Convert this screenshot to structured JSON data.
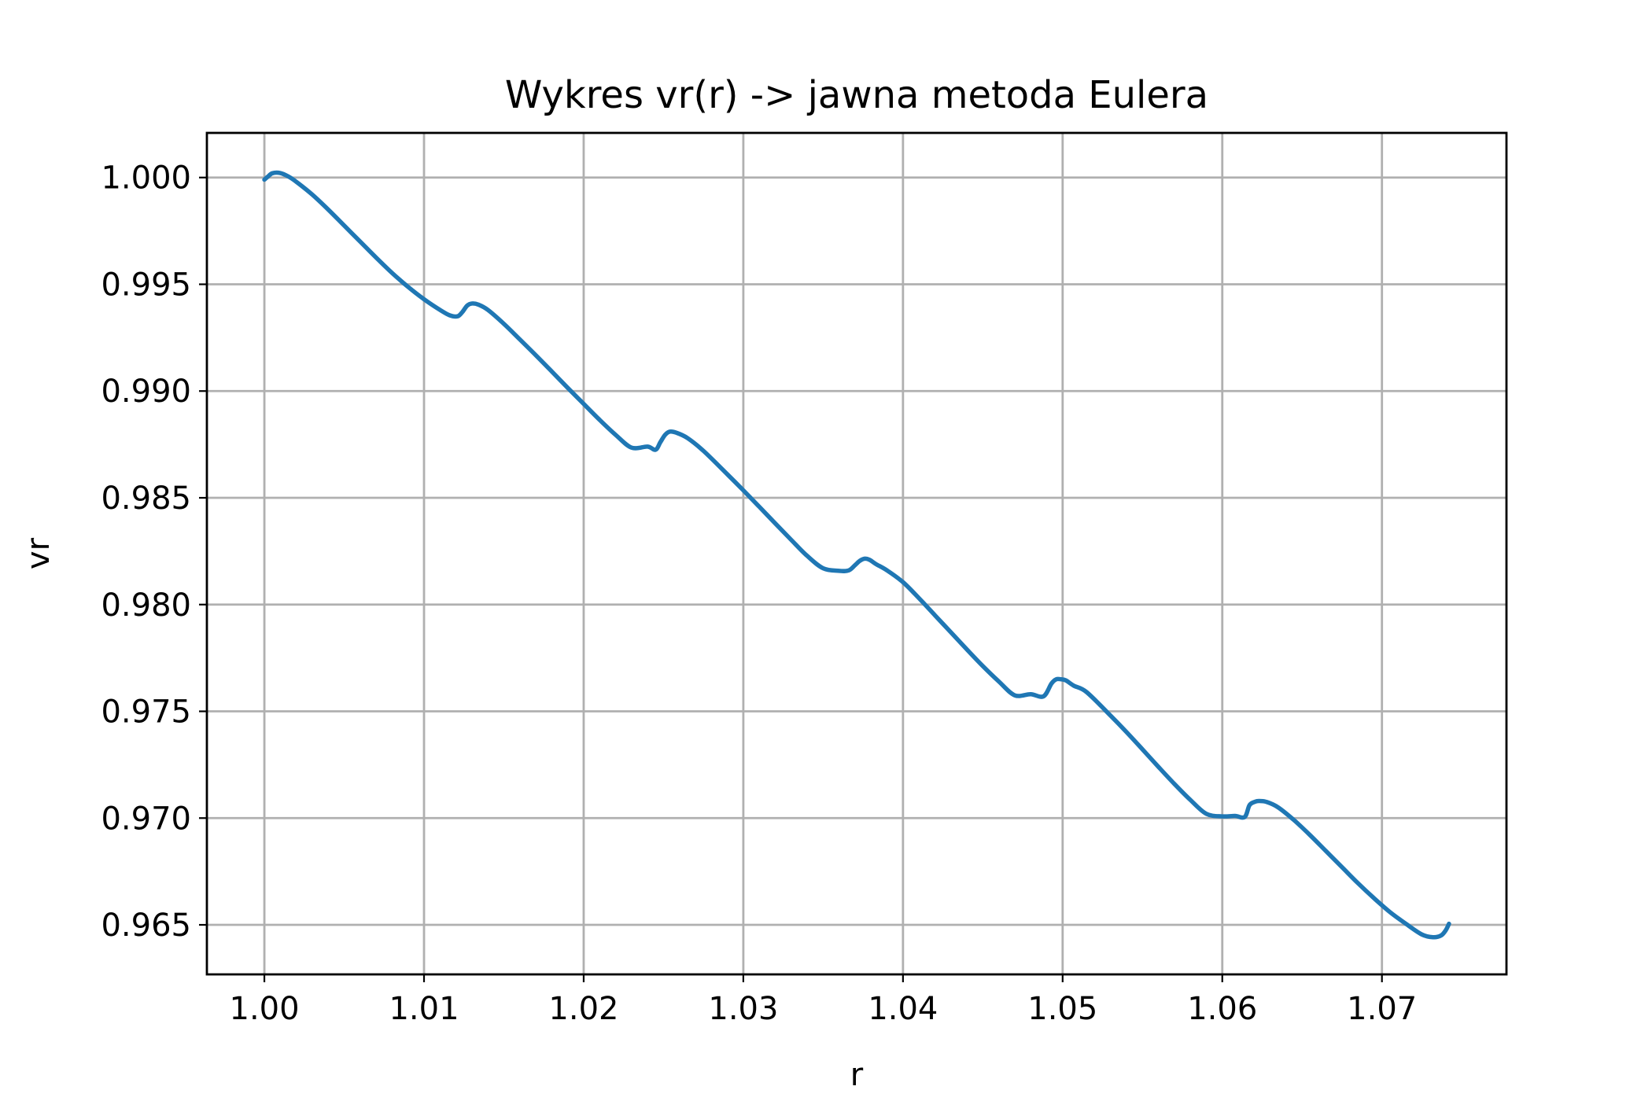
{
  "chart_data": {
    "type": "line",
    "title": "Wykres vr(r) -> jawna metoda Eulera",
    "xlabel": "r",
    "ylabel": "vr",
    "xlim": [
      0.9964,
      1.0778
    ],
    "ylim": [
      0.96268,
      1.00209
    ],
    "grid": true,
    "x_ticks": [
      1.0,
      1.01,
      1.02,
      1.03,
      1.04,
      1.05,
      1.06,
      1.07
    ],
    "x_tick_labels": [
      "1.00",
      "1.01",
      "1.02",
      "1.03",
      "1.04",
      "1.05",
      "1.06",
      "1.07"
    ],
    "y_ticks": [
      0.965,
      0.97,
      0.975,
      0.98,
      0.985,
      0.99,
      0.995,
      1.0
    ],
    "y_tick_labels": [
      "0.965",
      "0.970",
      "0.975",
      "0.980",
      "0.985",
      "0.990",
      "0.995",
      "1.000"
    ],
    "series": [
      {
        "color": "#1f77b4",
        "x": [
          1.0,
          1.0002,
          1.0005,
          1.001,
          1.0015,
          1.002,
          1.003,
          1.004,
          1.005,
          1.006,
          1.007,
          1.008,
          1.009,
          1.01,
          1.011,
          1.0116,
          1.0121,
          1.0124,
          1.0127,
          1.013,
          1.0134,
          1.014,
          1.015,
          1.016,
          1.017,
          1.018,
          1.019,
          1.02,
          1.021,
          1.022,
          1.023,
          1.024,
          1.0245,
          1.0248,
          1.0251,
          1.0254,
          1.0258,
          1.0265,
          1.0275,
          1.029,
          1.03,
          1.031,
          1.032,
          1.033,
          1.034,
          1.035,
          1.036,
          1.0366,
          1.037,
          1.0373,
          1.0376,
          1.0379,
          1.0383,
          1.039,
          1.04,
          1.041,
          1.042,
          1.043,
          1.044,
          1.045,
          1.046,
          1.047,
          1.048,
          1.0488,
          1.0493,
          1.0496,
          1.0499,
          1.0502,
          1.0507,
          1.0515,
          1.053,
          1.054,
          1.055,
          1.056,
          1.057,
          1.058,
          1.059,
          1.06,
          1.0608,
          1.0614,
          1.0617,
          1.062,
          1.0623,
          1.0628,
          1.0635,
          1.0645,
          1.0655,
          1.0665,
          1.0675,
          1.0685,
          1.0695,
          1.0705,
          1.0715,
          1.0725,
          1.0732,
          1.0737,
          1.074,
          1.0742
        ],
        "y": [
          0.9999,
          1.00003,
          1.0002,
          1.00021,
          1.00005,
          0.9998,
          0.9992,
          0.9985,
          0.99775,
          0.997,
          0.99625,
          0.99553,
          0.99488,
          0.9943,
          0.9938,
          0.99355,
          0.9935,
          0.9937,
          0.994,
          0.9941,
          0.99405,
          0.9938,
          0.99315,
          0.99242,
          0.99168,
          0.99092,
          0.99015,
          0.9894,
          0.98865,
          0.98795,
          0.98735,
          0.9874,
          0.98725,
          0.9876,
          0.98795,
          0.9881,
          0.98805,
          0.9878,
          0.9872,
          0.9861,
          0.98535,
          0.98458,
          0.9838,
          0.98303,
          0.98228,
          0.9817,
          0.98158,
          0.9816,
          0.98185,
          0.98205,
          0.98215,
          0.9821,
          0.9819,
          0.9816,
          0.98105,
          0.9803,
          0.9795,
          0.9787,
          0.9779,
          0.97712,
          0.9764,
          0.97575,
          0.9758,
          0.9757,
          0.9763,
          0.9765,
          0.9765,
          0.97645,
          0.9762,
          0.9759,
          0.9748,
          0.97403,
          0.97322,
          0.9724,
          0.9716,
          0.97085,
          0.9702,
          0.97008,
          0.9701,
          0.97005,
          0.9706,
          0.97075,
          0.9708,
          0.97075,
          0.9705,
          0.9699,
          0.9692,
          0.96845,
          0.9677,
          0.96695,
          0.96625,
          0.9656,
          0.96505,
          0.96455,
          0.96442,
          0.9645,
          0.96475,
          0.96505
        ]
      }
    ]
  }
}
